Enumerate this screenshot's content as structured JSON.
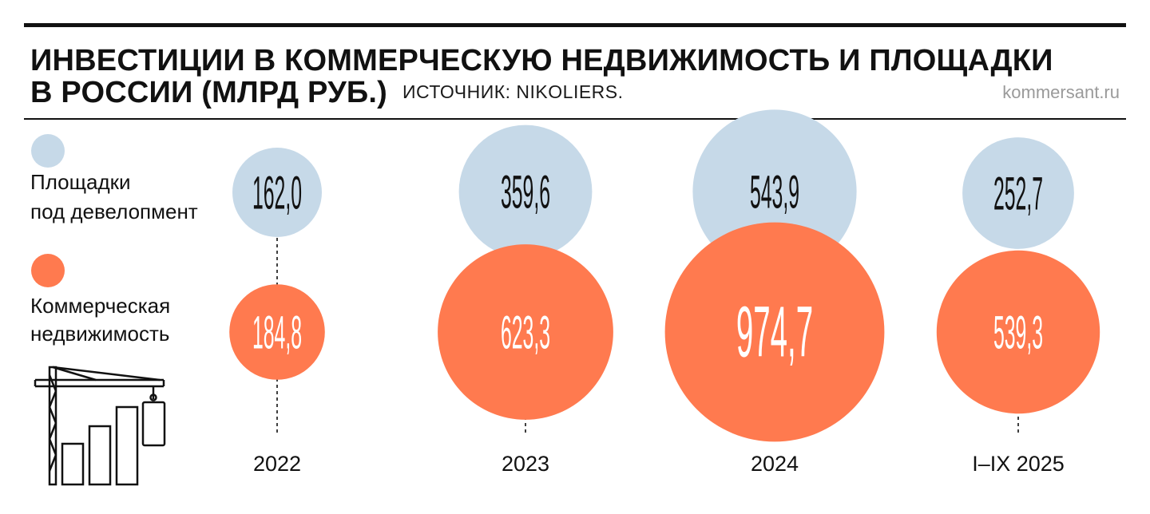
{
  "title_line1": "ИНВЕСТИЦИИ В КОММЕРЧЕСКУЮ НЕДВИЖИМОСТЬ И ПЛОЩАДКИ",
  "title_line2": "В РОССИИ (МЛРД РУБ.)",
  "source": "ИСТОЧНИК: NIKOLIERS.",
  "site": "kommersant.ru",
  "legend": [
    {
      "line1": "Площадки",
      "line2": "под девелопмент",
      "color": "#c6d9e8"
    },
    {
      "line1": "Коммерческая",
      "line2": "недвижимость",
      "color": "#ff7a4f"
    }
  ],
  "colors": {
    "blue": "#c6d9e8",
    "orange": "#ff7a4f",
    "ink": "#111111"
  },
  "icon": "construction-crane-icon",
  "chart_data": {
    "type": "bubble",
    "categories": [
      "2022",
      "2023",
      "2024",
      "I–IX 2025"
    ],
    "series": [
      {
        "name": "Площадки под девелопмент",
        "values": [
          162.0,
          359.6,
          543.9,
          252.7
        ],
        "labels": [
          "162,0",
          "359,6",
          "543,9",
          "252,7"
        ],
        "color": "#c6d9e8"
      },
      {
        "name": "Коммерческая недвижимость",
        "values": [
          184.8,
          623.3,
          974.7,
          539.3
        ],
        "labels": [
          "184,8",
          "623,3",
          "974,7",
          "539,3"
        ],
        "color": "#ff7a4f"
      }
    ]
  }
}
